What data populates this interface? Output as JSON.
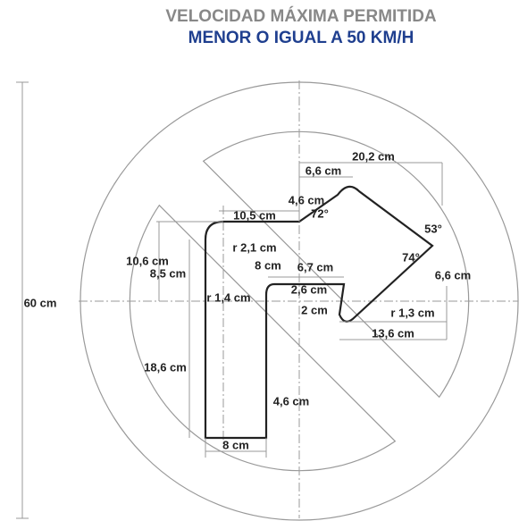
{
  "title": "VELOCIDAD MÁXIMA PERMITIDA",
  "subtitle": "MENOR O IGUAL A 50 KM/H",
  "labels": [
    "60 cm",
    "20,2 cm",
    "6,6 cm",
    "4,6 cm",
    "72°",
    "53°",
    "74°",
    "6,6 cm",
    "10,5 cm",
    "r 2,1 cm",
    "8 cm",
    "10,6 cm",
    "8,5 cm",
    "6,7 cm",
    "r 1,4 cm",
    "2,6 cm",
    "2 cm",
    "r 1,3 cm",
    "13,6 cm",
    "18,6 cm",
    "4,6 cm",
    "8 cm"
  ]
}
